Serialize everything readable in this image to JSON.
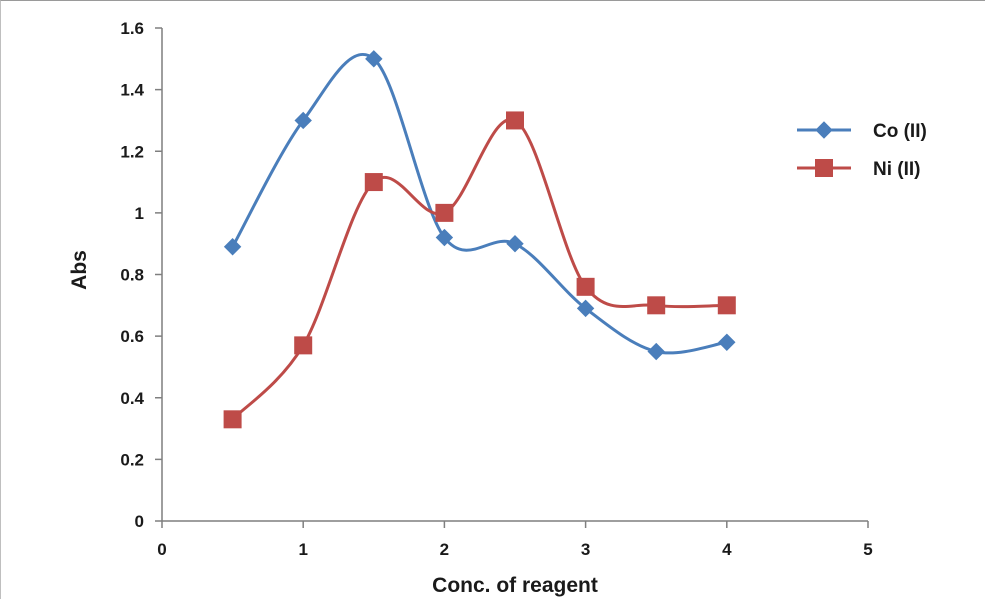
{
  "chart_data": {
    "type": "line",
    "title": "",
    "xlabel": "Conc. of reagent",
    "ylabel": "Abs",
    "xlim": [
      0,
      5
    ],
    "ylim": [
      0,
      1.6
    ],
    "x_ticks": [
      "0",
      "1",
      "2",
      "3",
      "4",
      "5"
    ],
    "y_ticks": [
      "0",
      "0.2",
      "0.4",
      "0.6",
      "0.8",
      "1",
      "1.2",
      "1.4",
      "1.6"
    ],
    "grid": false,
    "legend_position": "right",
    "smoothed": true,
    "series": [
      {
        "name": "Co (II)",
        "color": "#4a7ebb",
        "marker": "diamond",
        "x": [
          0.5,
          1,
          1.5,
          2,
          2.5,
          3,
          3.5,
          4
        ],
        "y": [
          0.89,
          1.3,
          1.5,
          0.92,
          0.9,
          0.69,
          0.55,
          0.58
        ]
      },
      {
        "name": "Ni (II)",
        "color": "#be4b48",
        "marker": "square",
        "x": [
          0.5,
          1,
          1.5,
          2,
          2.5,
          3,
          3.5,
          4
        ],
        "y": [
          0.33,
          0.57,
          1.1,
          1.0,
          1.3,
          0.76,
          0.7,
          0.7
        ]
      }
    ]
  }
}
